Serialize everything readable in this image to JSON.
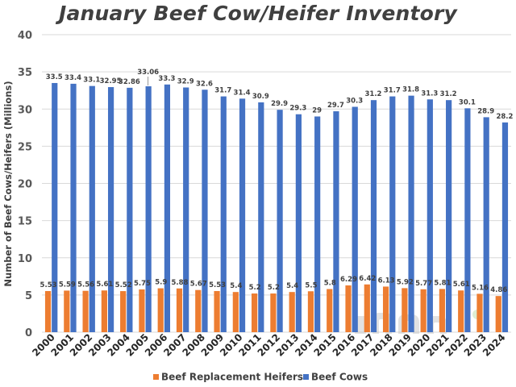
{
  "chart_data": {
    "type": "bar",
    "title": "January Beef Cow/Heifer Inventory",
    "xlabel": "",
    "ylabel": "Number of Beef Cows/Heifers (Millions)",
    "ylim": [
      0,
      40
    ],
    "yticks": [
      0,
      5,
      10,
      15,
      20,
      25,
      30,
      35,
      40
    ],
    "grid": true,
    "legend_position": "bottom",
    "categories": [
      "2000",
      "2001",
      "2002",
      "2003",
      "2004",
      "2005",
      "2006",
      "2007",
      "2008",
      "2009",
      "2010",
      "2011",
      "2012",
      "2013",
      "2014",
      "2015",
      "2016",
      "2017",
      "2018",
      "2019",
      "2020",
      "2021",
      "2022",
      "2023",
      "2024"
    ],
    "series": [
      {
        "name": "Beef Replacement Heifers",
        "color": "#ED7D31",
        "values": [
          5.53,
          5.59,
          5.56,
          5.61,
          5.52,
          5.75,
          5.9,
          5.88,
          5.67,
          5.53,
          5.4,
          5.2,
          5.2,
          5.4,
          5.5,
          5.8,
          6.29,
          6.42,
          6.13,
          5.92,
          5.77,
          5.81,
          5.61,
          5.16,
          4.86
        ],
        "labels": [
          "5.53",
          "5.59",
          "5.56",
          "5.61",
          "5.52",
          "5.75",
          "5.9",
          "5.88",
          "5.67",
          "5.53",
          "5.4",
          "5.2",
          "5.2",
          "5.4",
          "5.5",
          "5.8",
          "6.29",
          "6.42",
          "6.13",
          "5.92",
          "5.77",
          "5.81",
          "5.61",
          "5.16",
          "4.86"
        ]
      },
      {
        "name": "Beef Cows",
        "color": "#4472C4",
        "values": [
          33.5,
          33.4,
          33.1,
          32.95,
          32.86,
          33.06,
          33.3,
          32.9,
          32.6,
          31.7,
          31.4,
          30.9,
          29.9,
          29.3,
          29,
          29.7,
          30.3,
          31.2,
          31.7,
          31.8,
          31.3,
          31.2,
          30.1,
          28.9,
          28.2
        ],
        "labels": [
          "33.5",
          "33.4",
          "33.1",
          "32.95",
          "32.86",
          "33.06",
          "33.3",
          "32.9",
          "32.6",
          "31.7",
          "31.4",
          "30.9",
          "29.9",
          "29.3",
          "29",
          "29.7",
          "30.3",
          "31.2",
          "31.7",
          "31.8",
          "31.3",
          "31.2",
          "30.1",
          "28.9",
          "28.2"
        ]
      }
    ]
  },
  "colors": {
    "grid": "#D9D9D9",
    "axis_text": "#595959",
    "watermark": "#BFBFBF"
  },
  "watermark_icon": "dtn-logo"
}
